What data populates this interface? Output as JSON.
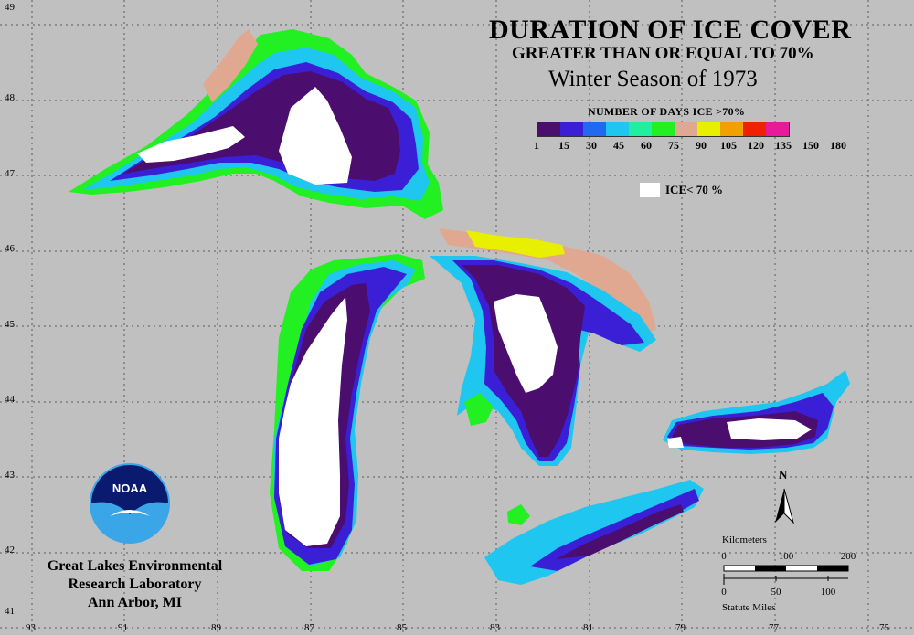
{
  "title": "DURATION OF ICE COVER",
  "subtitle": "GREATER THAN OR EQUAL TO 70%",
  "season": "Winter Season of 1973",
  "legend": {
    "title": "NUMBER OF DAYS ICE >70%",
    "ticks": [
      "1",
      "15",
      "30",
      "45",
      "60",
      "75",
      "90",
      "105",
      "120",
      "135",
      "150",
      "180"
    ],
    "colors": [
      "#4b0d6e",
      "#3b1fd6",
      "#1f6af0",
      "#1ec6f0",
      "#1ef0a0",
      "#22f022",
      "#e0a890",
      "#e8f000",
      "#f0a000",
      "#f02000",
      "#e61a9a"
    ],
    "ice_below_label": "ICE< 70 %"
  },
  "latitudes": [
    "49",
    "48",
    "47",
    "46",
    "45",
    "44",
    "43",
    "42",
    "41"
  ],
  "longitudes": [
    "93",
    "91",
    "89",
    "87",
    "85",
    "83",
    "81",
    "79",
    "77",
    "75"
  ],
  "organization": [
    "Great Lakes Environmental",
    "Research Laboratory",
    "Ann Arbor, MI"
  ],
  "logo_text": "NOAA",
  "scale": {
    "km_label": "Kilometers",
    "km_ticks": [
      "0",
      "100",
      "200"
    ],
    "mi_ticks": [
      "0",
      "50",
      "100"
    ],
    "mi_label": "Statute Miles"
  },
  "north_label": "N"
}
